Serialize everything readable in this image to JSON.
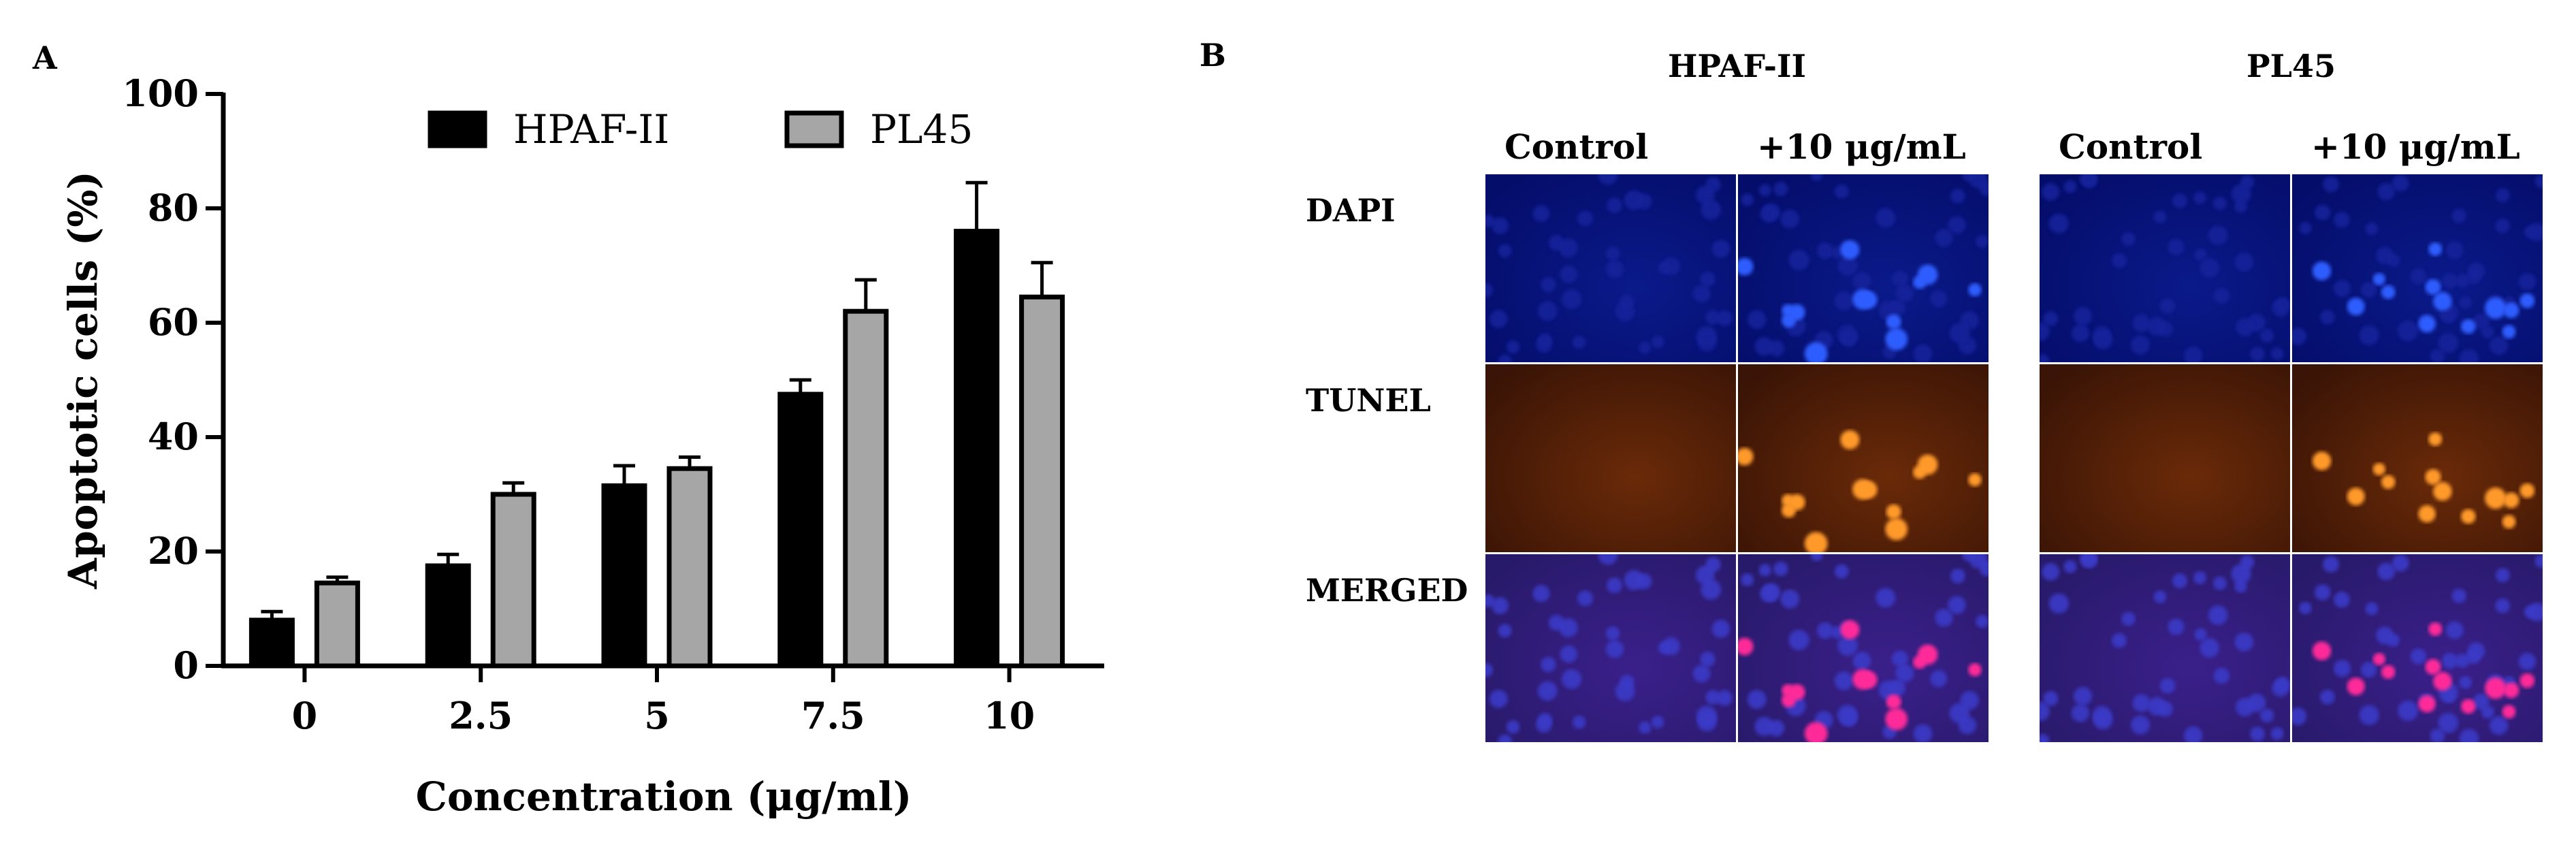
{
  "panels": {
    "a_label": "A",
    "b_label": "B"
  },
  "chart_data": {
    "type": "bar",
    "xlabel": "Concentration (μg/ml)",
    "ylabel": "Apoptotic cells (%)",
    "ylim": [
      0,
      100
    ],
    "yticks": [
      0,
      20,
      40,
      60,
      80,
      100
    ],
    "categories": [
      "0",
      "2.5",
      "5",
      "7.5",
      "10"
    ],
    "legend_position": "top-center",
    "grid": false,
    "series": [
      {
        "name": "HPAF-II",
        "color": "#000000",
        "values": [
          8,
          17.5,
          31.5,
          47.5,
          76
        ],
        "errors": [
          1.5,
          2,
          3.5,
          2.5,
          8.5
        ]
      },
      {
        "name": "PL45",
        "color": "#a6a6a6",
        "values": [
          14.5,
          30,
          34.5,
          62,
          64.5
        ],
        "errors": [
          1,
          2,
          2,
          5.5,
          6
        ]
      }
    ]
  },
  "micrographs": {
    "cell_lines": [
      "HPAF-II",
      "PL45"
    ],
    "conditions": [
      "Control",
      "+10 μg/mL"
    ],
    "stains": [
      "DAPI",
      "TUNEL",
      "MERGED"
    ]
  }
}
